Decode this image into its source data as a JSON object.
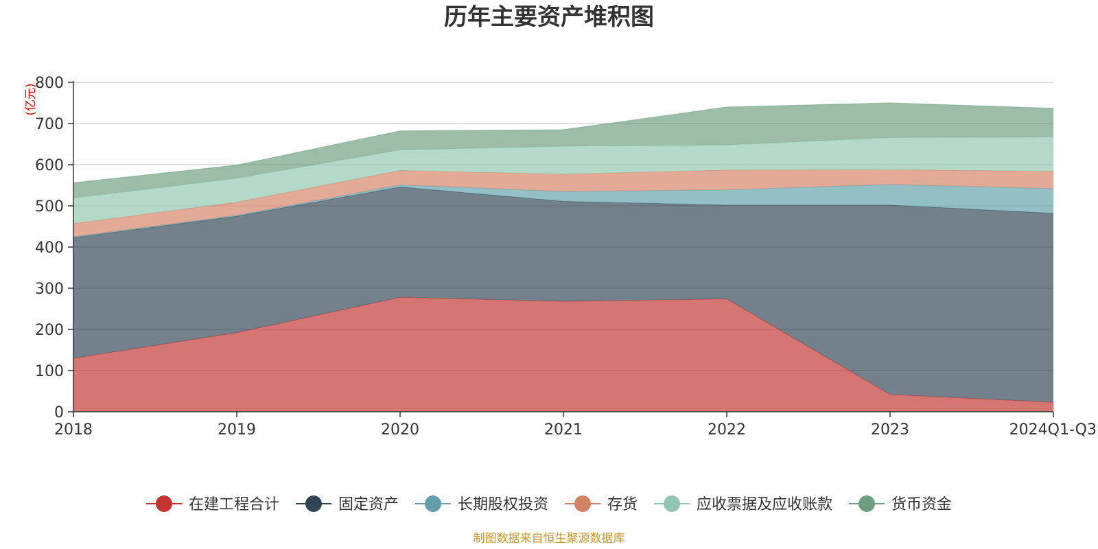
{
  "chart_data": {
    "type": "area",
    "stacked": true,
    "title": "历年主要资产堆积图",
    "unit_label": "(亿元)",
    "categories": [
      "2018",
      "2019",
      "2020",
      "2021",
      "2022",
      "2023",
      "2024Q1-Q3"
    ],
    "ylim": [
      0,
      800
    ],
    "yticks": [
      0,
      100,
      200,
      300,
      400,
      500,
      600,
      700,
      800
    ],
    "grid": true,
    "legend_position": "bottom",
    "series": [
      {
        "name": "在建工程合计",
        "color": "#c23531",
        "values": [
          130,
          192,
          278,
          268,
          274,
          42,
          23
        ]
      },
      {
        "name": "固定资产",
        "color": "#2f4554",
        "values": [
          293,
          283,
          268,
          243,
          228,
          460,
          459
        ]
      },
      {
        "name": "长期股权投资",
        "color": "#61a0a8",
        "values": [
          2,
          2,
          5,
          24,
          37,
          50,
          60
        ]
      },
      {
        "name": "存货",
        "color": "#d48265",
        "values": [
          32,
          32,
          35,
          42,
          48,
          36,
          42
        ]
      },
      {
        "name": "应收票据及应收账款",
        "color": "#91c7ae",
        "values": [
          62,
          58,
          50,
          68,
          61,
          78,
          83
        ]
      },
      {
        "name": "货币资金",
        "color": "#6e9e80",
        "values": [
          37,
          32,
          46,
          40,
          92,
          84,
          70
        ]
      }
    ],
    "source_note": "制图数据来自恒生聚源数据库"
  }
}
